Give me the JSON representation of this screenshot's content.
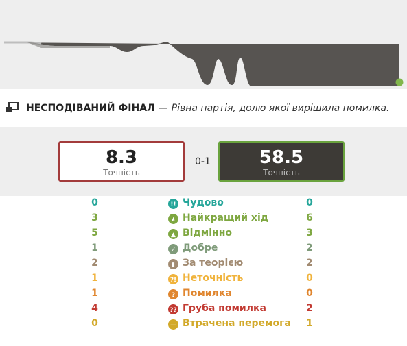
{
  "headline": {
    "title": "НЕСПОДІВАНИЙ ФІНАЛ",
    "dash": "—",
    "description": "Рівна партія, долю якої вирішила помилка."
  },
  "accuracy": {
    "white": {
      "value": "8.3",
      "label": "Точність"
    },
    "black": {
      "value": "58.5",
      "label": "Точність"
    },
    "score": "0-1"
  },
  "colors": {
    "white_border": "#a33b3b",
    "black_border": "#6aa33e",
    "graph_dark": "#575451",
    "graph_light": "#bdbdbd",
    "end_dot": "#81b64c"
  },
  "stats": [
    {
      "icon": "brilliant-icon",
      "glyph": "!!",
      "color": "#26a69a",
      "name": "Чудово",
      "white": "0",
      "black": "0"
    },
    {
      "icon": "best-move-icon",
      "glyph": "★",
      "color": "#7ea740",
      "name": "Найкращий хід",
      "white": "3",
      "black": "6"
    },
    {
      "icon": "excellent-icon",
      "glyph": "👍",
      "color": "#7ea740",
      "name": "Відмінно",
      "white": "5",
      "black": "3"
    },
    {
      "icon": "good-icon",
      "glyph": "✓",
      "color": "#7f9b7a",
      "name": "Добре",
      "white": "1",
      "black": "2"
    },
    {
      "icon": "book-icon",
      "glyph": "▮",
      "color": "#a28b72",
      "name": "За теорією",
      "white": "2",
      "black": "2"
    },
    {
      "icon": "inaccuracy-icon",
      "glyph": "?!",
      "color": "#f0b33c",
      "name": "Неточність",
      "white": "1",
      "black": "0"
    },
    {
      "icon": "mistake-icon",
      "glyph": "?",
      "color": "#e0862f",
      "name": "Помилка",
      "white": "1",
      "black": "0"
    },
    {
      "icon": "blunder-icon",
      "glyph": "??",
      "color": "#c23a32",
      "name": "Груба помилка",
      "white": "4",
      "black": "2"
    },
    {
      "icon": "missed-win-icon",
      "glyph": "—",
      "color": "#d2a92a",
      "name": "Втрачена перемога",
      "white": "0",
      "black": "1"
    }
  ]
}
